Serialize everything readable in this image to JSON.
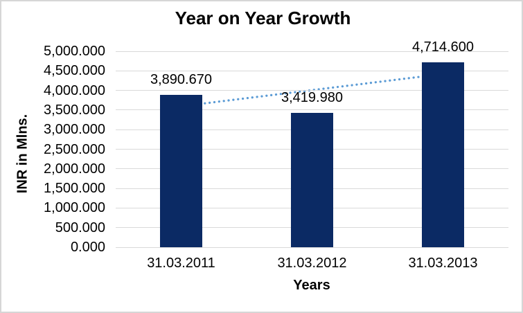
{
  "chart_data": {
    "type": "bar",
    "title": "Year on Year Growth",
    "xlabel": "Years",
    "ylabel": "INR in Mlns.",
    "categories": [
      "31.03.2011",
      "31.03.2012",
      "31.03.2013"
    ],
    "values": [
      3890.67,
      3419.98,
      4714.6
    ],
    "data_labels": [
      "3,890.670",
      "3,419.980",
      "4,714.600"
    ],
    "y_ticks": [
      "0.000",
      "500.000",
      "1,000.000",
      "1,500.000",
      "2,000.000",
      "2,500.000",
      "3,000.000",
      "3,500.000",
      "4,000.000",
      "4,500.000",
      "5,000.000"
    ],
    "ylim": [
      0,
      5000
    ],
    "grid": true,
    "legend": "none",
    "trendline": "linear",
    "colors": {
      "bar": "#0b2a64",
      "trendline": "#5b9bd5",
      "gridline": "#d9d9d9",
      "text": "#000000",
      "frame_border": "#d6d6d6"
    }
  }
}
